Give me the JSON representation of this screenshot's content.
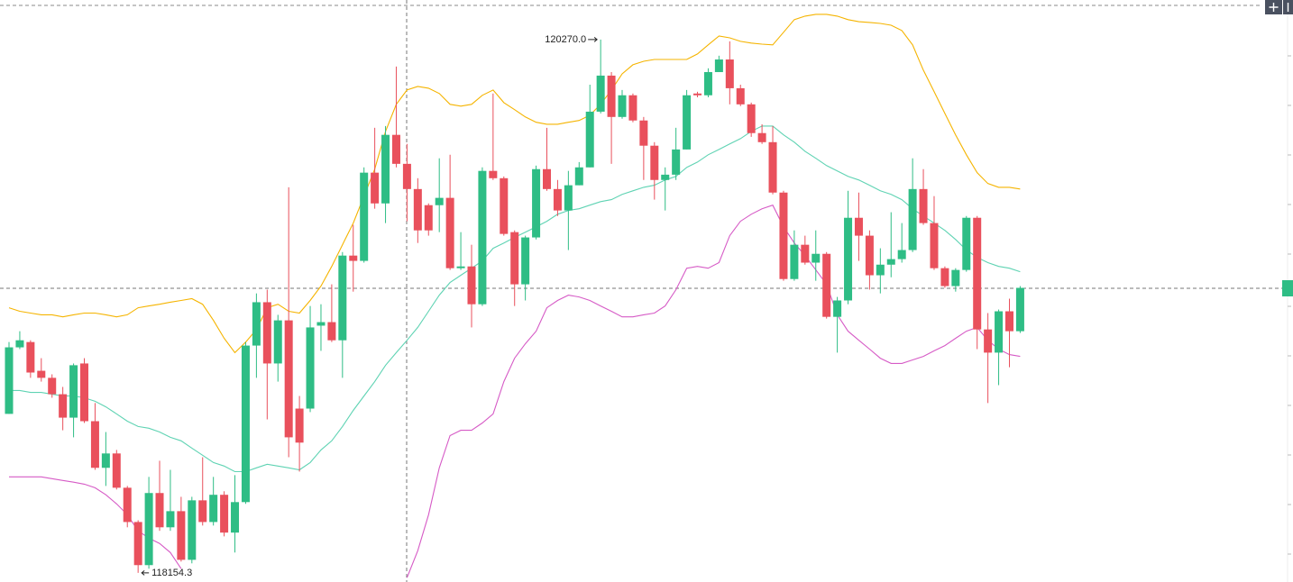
{
  "chart_data": {
    "type": "candlestick",
    "ylim": [
      118118,
      120427
    ],
    "colors": {
      "up": "#2ebd85",
      "down": "#e9505c"
    },
    "annotations": {
      "high": {
        "value": 120270,
        "label": "120270.0"
      },
      "low": {
        "value": 118154.3,
        "label": "118154.3"
      }
    },
    "categories": [
      null,
      null,
      null,
      null,
      null,
      null,
      null,
      null,
      null,
      null,
      null,
      null,
      null,
      null,
      null,
      null,
      null,
      null,
      null,
      null,
      null,
      null,
      null,
      null,
      null,
      null,
      null,
      null,
      null,
      null,
      null,
      null,
      null,
      null,
      null,
      null,
      null,
      null,
      null,
      null,
      null,
      null,
      null,
      null,
      null,
      null,
      null,
      null,
      null,
      null,
      null,
      null,
      null,
      null,
      null,
      null,
      null,
      null,
      null,
      null,
      null,
      null,
      null,
      null,
      null,
      null,
      null,
      null,
      null,
      null,
      null,
      null,
      null,
      null,
      null,
      null,
      null,
      null,
      null,
      null,
      null,
      null,
      null,
      null,
      null,
      null,
      null,
      null,
      null,
      null,
      null,
      null,
      null,
      null,
      null
    ],
    "ohlc": [
      [
        118785,
        119070,
        118785,
        119049
      ],
      [
        119049,
        119113,
        119042,
        119077
      ],
      [
        119070,
        119077,
        118928,
        118949
      ],
      [
        118956,
        119006,
        118913,
        118928
      ],
      [
        118928,
        118942,
        118849,
        118863
      ],
      [
        118863,
        118892,
        118720,
        118770
      ],
      [
        118770,
        118985,
        118692,
        118978
      ],
      [
        118985,
        119006,
        118749,
        118756
      ],
      [
        118756,
        118828,
        118563,
        118571
      ],
      [
        118571,
        118713,
        118499,
        118628
      ],
      [
        118628,
        118642,
        118485,
        118492
      ],
      [
        118492,
        118499,
        118335,
        118356
      ],
      [
        118356,
        118363,
        118154.3,
        118185
      ],
      [
        118185,
        118535,
        118171,
        118471
      ],
      [
        118471,
        118599,
        118321,
        118335
      ],
      [
        118335,
        118563,
        118321,
        118399
      ],
      [
        118399,
        118456,
        118199,
        118206
      ],
      [
        118206,
        118456,
        118192,
        118442
      ],
      [
        118442,
        118613,
        118342,
        118356
      ],
      [
        118356,
        118535,
        118342,
        118464
      ],
      [
        118464,
        118478,
        118299,
        118314
      ],
      [
        118314,
        118542,
        118235,
        118435
      ],
      [
        118435,
        119070,
        118428,
        119056
      ],
      [
        119056,
        119263,
        118928,
        119228
      ],
      [
        119228,
        119278,
        118763,
        118985
      ],
      [
        118985,
        119178,
        118913,
        119156
      ],
      [
        119156,
        119684,
        118613,
        118692
      ],
      [
        118806,
        118856,
        118556,
        118671
      ],
      [
        118806,
        119213,
        118792,
        119128
      ],
      [
        119135,
        119220,
        119035,
        119149
      ],
      [
        119149,
        119299,
        119070,
        119077
      ],
      [
        119077,
        119427,
        118928,
        119413
      ],
      [
        119413,
        119535,
        119270,
        119392
      ],
      [
        119392,
        119763,
        119385,
        119742
      ],
      [
        119742,
        119920,
        119599,
        119620
      ],
      [
        119620,
        119927,
        119542,
        119892
      ],
      [
        119892,
        120163,
        119763,
        119777
      ],
      [
        119777,
        119856,
        119549,
        119677
      ],
      [
        119677,
        119720,
        119463,
        119513
      ],
      [
        119613,
        119620,
        119492,
        119513
      ],
      [
        119613,
        119799,
        119506,
        119642
      ],
      [
        119642,
        119813,
        119356,
        119363
      ],
      [
        119363,
        119506,
        119356,
        119370
      ],
      [
        119370,
        119456,
        119128,
        119220
      ],
      [
        119220,
        119763,
        119213,
        119749
      ],
      [
        119749,
        120056,
        119713,
        119720
      ],
      [
        119720,
        119727,
        119492,
        119499
      ],
      [
        119506,
        119513,
        119213,
        119299
      ],
      [
        119299,
        119492,
        119235,
        119485
      ],
      [
        119485,
        119770,
        119477,
        119756
      ],
      [
        119756,
        119920,
        119670,
        119677
      ],
      [
        119677,
        119713,
        119570,
        119592
      ],
      [
        119592,
        119749,
        119435,
        119692
      ],
      [
        119692,
        119784,
        119692,
        119763
      ],
      [
        119763,
        120091,
        119763,
        119984
      ],
      [
        119984,
        120270,
        119977,
        120127
      ],
      [
        120127,
        120141,
        119777,
        119963
      ],
      [
        119963,
        120070,
        119956,
        120049
      ],
      [
        120049,
        120056,
        119942,
        119949
      ],
      [
        119949,
        119963,
        119713,
        119849
      ],
      [
        119849,
        119863,
        119635,
        119713
      ],
      [
        119713,
        119763,
        119592,
        119734
      ],
      [
        119734,
        119920,
        119713,
        119834
      ],
      [
        119834,
        120070,
        119834,
        120049
      ],
      [
        120056,
        120063,
        120041,
        120049
      ],
      [
        120049,
        120156,
        120041,
        120141
      ],
      [
        120141,
        120206,
        120141,
        120191
      ],
      [
        120191,
        120263,
        120013,
        120077
      ],
      [
        120077,
        120091,
        120006,
        120013
      ],
      [
        120013,
        120020,
        119884,
        119899
      ],
      [
        119899,
        119934,
        119856,
        119863
      ],
      [
        119863,
        119927,
        119656,
        119663
      ],
      [
        119663,
        119670,
        119313,
        119320
      ],
      [
        119320,
        119513,
        119313,
        119456
      ],
      [
        119456,
        119492,
        119377,
        119385
      ],
      [
        119385,
        119513,
        119313,
        119420
      ],
      [
        119420,
        119427,
        119163,
        119170
      ],
      [
        119170,
        119249,
        119028,
        119235
      ],
      [
        119235,
        119670,
        119220,
        119563
      ],
      [
        119563,
        119663,
        119392,
        119492
      ],
      [
        119492,
        119513,
        119278,
        119335
      ],
      [
        119335,
        119442,
        119263,
        119377
      ],
      [
        119377,
        119585,
        119327,
        119399
      ],
      [
        119399,
        119542,
        119385,
        119435
      ],
      [
        119435,
        119799,
        119427,
        119677
      ],
      [
        119677,
        119756,
        119535,
        119542
      ],
      [
        119542,
        119649,
        119356,
        119363
      ],
      [
        119363,
        119370,
        119285,
        119292
      ],
      [
        119292,
        119363,
        119270,
        119356
      ],
      [
        119356,
        119570,
        119349,
        119563
      ],
      [
        119563,
        119570,
        119042,
        119120
      ],
      [
        119120,
        119185,
        118828,
        119028
      ],
      [
        119028,
        119199,
        118899,
        119192
      ],
      [
        119192,
        119242,
        118970,
        119113
      ],
      [
        119113,
        119292,
        119106,
        119285
      ]
    ],
    "series": [
      {
        "color": "#f5b400",
        "values": [
          119206,
          119192,
          119185,
          119178,
          119178,
          119170,
          119178,
          119185,
          119185,
          119178,
          119170,
          119178,
          119206,
          119213,
          119220,
          119228,
          119235,
          119242,
          119220,
          119156,
          119085,
          119028,
          119070,
          119120,
          119206,
          119220,
          119192,
          119185,
          119235,
          119292,
          119370,
          119456,
          119542,
          119649,
          119756,
          119906,
          120013,
          120070,
          120084,
          120077,
          120056,
          120013,
          120006,
          120013,
          120049,
          120070,
          120020,
          119992,
          119963,
          119942,
          119934,
          119934,
          119942,
          119949,
          119970,
          120013,
          120070,
          120134,
          120170,
          120184,
          120191,
          120191,
          120191,
          120191,
          120213,
          120249,
          120284,
          120277,
          120263,
          120256,
          120252,
          120249,
          120299,
          120349,
          120363,
          120370,
          120370,
          120363,
          120349,
          120341,
          120338,
          120334,
          120327,
          120306,
          120249,
          120149,
          120063,
          119977,
          119892,
          119813,
          119742,
          119699,
          119684,
          119684,
          119677
        ]
      },
      {
        "color": "#5fd3b3",
        "values": [
          118878,
          118878,
          118870,
          118870,
          118863,
          118856,
          118856,
          118849,
          118835,
          118813,
          118785,
          118756,
          118735,
          118728,
          118713,
          118692,
          118678,
          118649,
          118621,
          118592,
          118578,
          118556,
          118556,
          118571,
          118585,
          118578,
          118571,
          118563,
          118592,
          118642,
          118678,
          118735,
          118799,
          118856,
          118913,
          118978,
          119028,
          119077,
          119128,
          119192,
          119256,
          119306,
          119335,
          119363,
          119392,
          119442,
          119463,
          119485,
          119506,
          119527,
          119549,
          119577,
          119592,
          119599,
          119613,
          119627,
          119635,
          119656,
          119670,
          119684,
          119692,
          119713,
          119727,
          119763,
          119784,
          119813,
          119834,
          119856,
          119877,
          119906,
          119927,
          119927,
          119892,
          119863,
          119827,
          119799,
          119770,
          119749,
          119727,
          119713,
          119692,
          119670,
          119656,
          119635,
          119599,
          119570,
          119542,
          119513,
          119477,
          119435,
          119406,
          119385,
          119370,
          119363,
          119349
        ]
      },
      {
        "color": "#d65bc6",
        "values": [
          118535,
          118535,
          118535,
          118535,
          118528,
          118521,
          118514,
          118506,
          118492,
          118464,
          118428,
          118385,
          118321,
          118292,
          118271,
          118235,
          118171,
          null,
          null,
          null,
          null,
          null,
          null,
          null,
          null,
          null,
          null,
          null,
          null,
          null,
          null,
          null,
          null,
          null,
          null,
          null,
          null,
          118135,
          118242,
          118385,
          118571,
          118699,
          118720,
          118720,
          118749,
          118785,
          118913,
          119006,
          119063,
          119113,
          119206,
          119235,
          119256,
          119249,
          119235,
          119213,
          119192,
          119170,
          119170,
          119178,
          119185,
          119213,
          119278,
          119363,
          119370,
          119363,
          119385,
          119492,
          119549,
          119577,
          119599,
          119613,
          119527,
          119463,
          119413,
          119356,
          119299,
          119178,
          119113,
          119077,
          119042,
          119006,
          118985,
          118985,
          118999,
          119013,
          119035,
          119056,
          119085,
          119113,
          119128,
          119077,
          119042,
          119020,
          119013
        ]
      }
    ]
  }
}
